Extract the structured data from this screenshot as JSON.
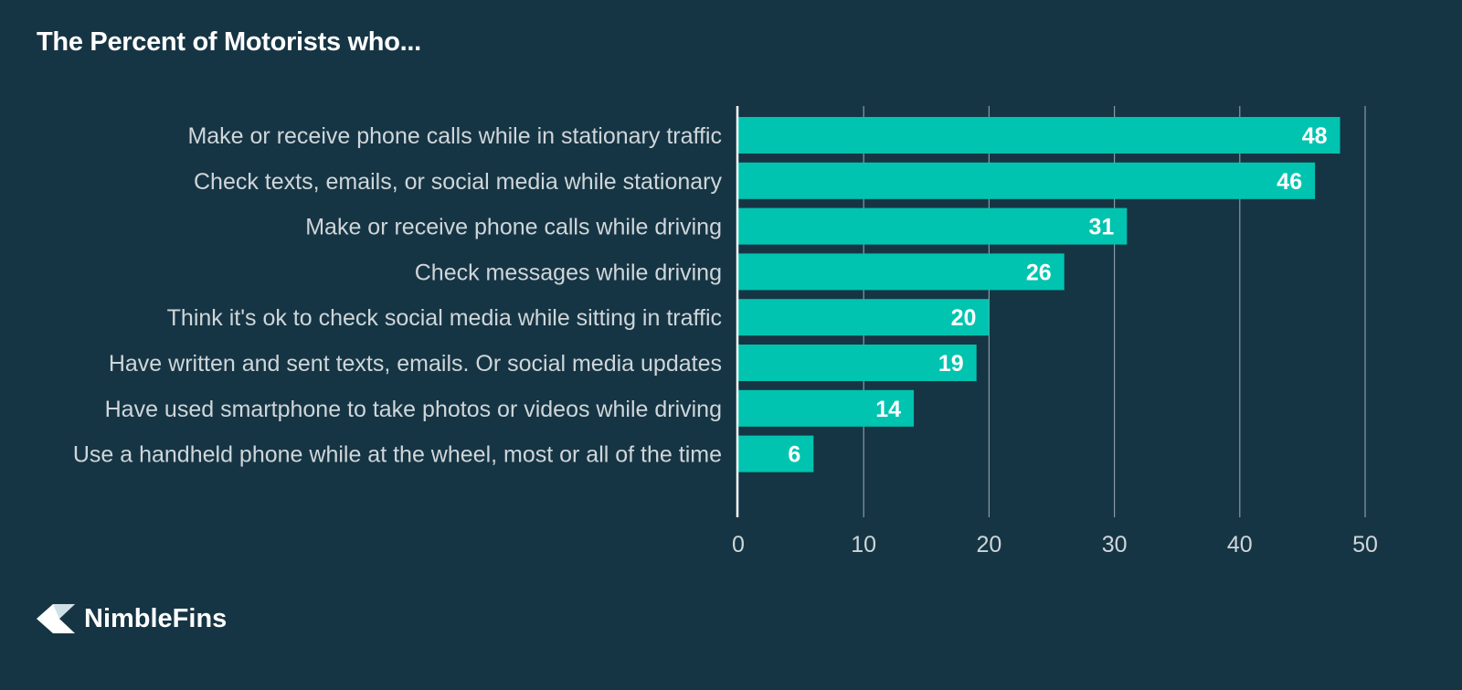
{
  "brand": {
    "name": "NimbleFins",
    "logo_icon": "fin-logo-icon"
  },
  "colors": {
    "background": "#163544",
    "bar": "#00c4b0",
    "grid": "#8a9aa3",
    "label_text": "#cfd6da",
    "title_text": "#ffffff"
  },
  "chart_data": {
    "type": "bar",
    "orientation": "horizontal",
    "title": "The Percent of Motorists who...",
    "xlabel": "",
    "ylabel": "",
    "xlim": [
      0,
      50
    ],
    "xticks": [
      0,
      10,
      20,
      30,
      40,
      50
    ],
    "grid": "vertical",
    "legend": "none",
    "categories": [
      "Make or receive phone calls while in stationary traffic",
      "Check texts, emails, or social media while stationary",
      "Make or receive phone calls while driving",
      "Check messages while driving",
      "Think it's ok to check social media while sitting in traffic",
      "Have written and sent texts, emails. Or social media updates",
      "Have used smartphone to take photos or videos while driving",
      "Use a handheld phone while at the wheel, most or all of the time"
    ],
    "values": [
      48,
      46,
      31,
      26,
      20,
      19,
      14,
      6
    ]
  }
}
